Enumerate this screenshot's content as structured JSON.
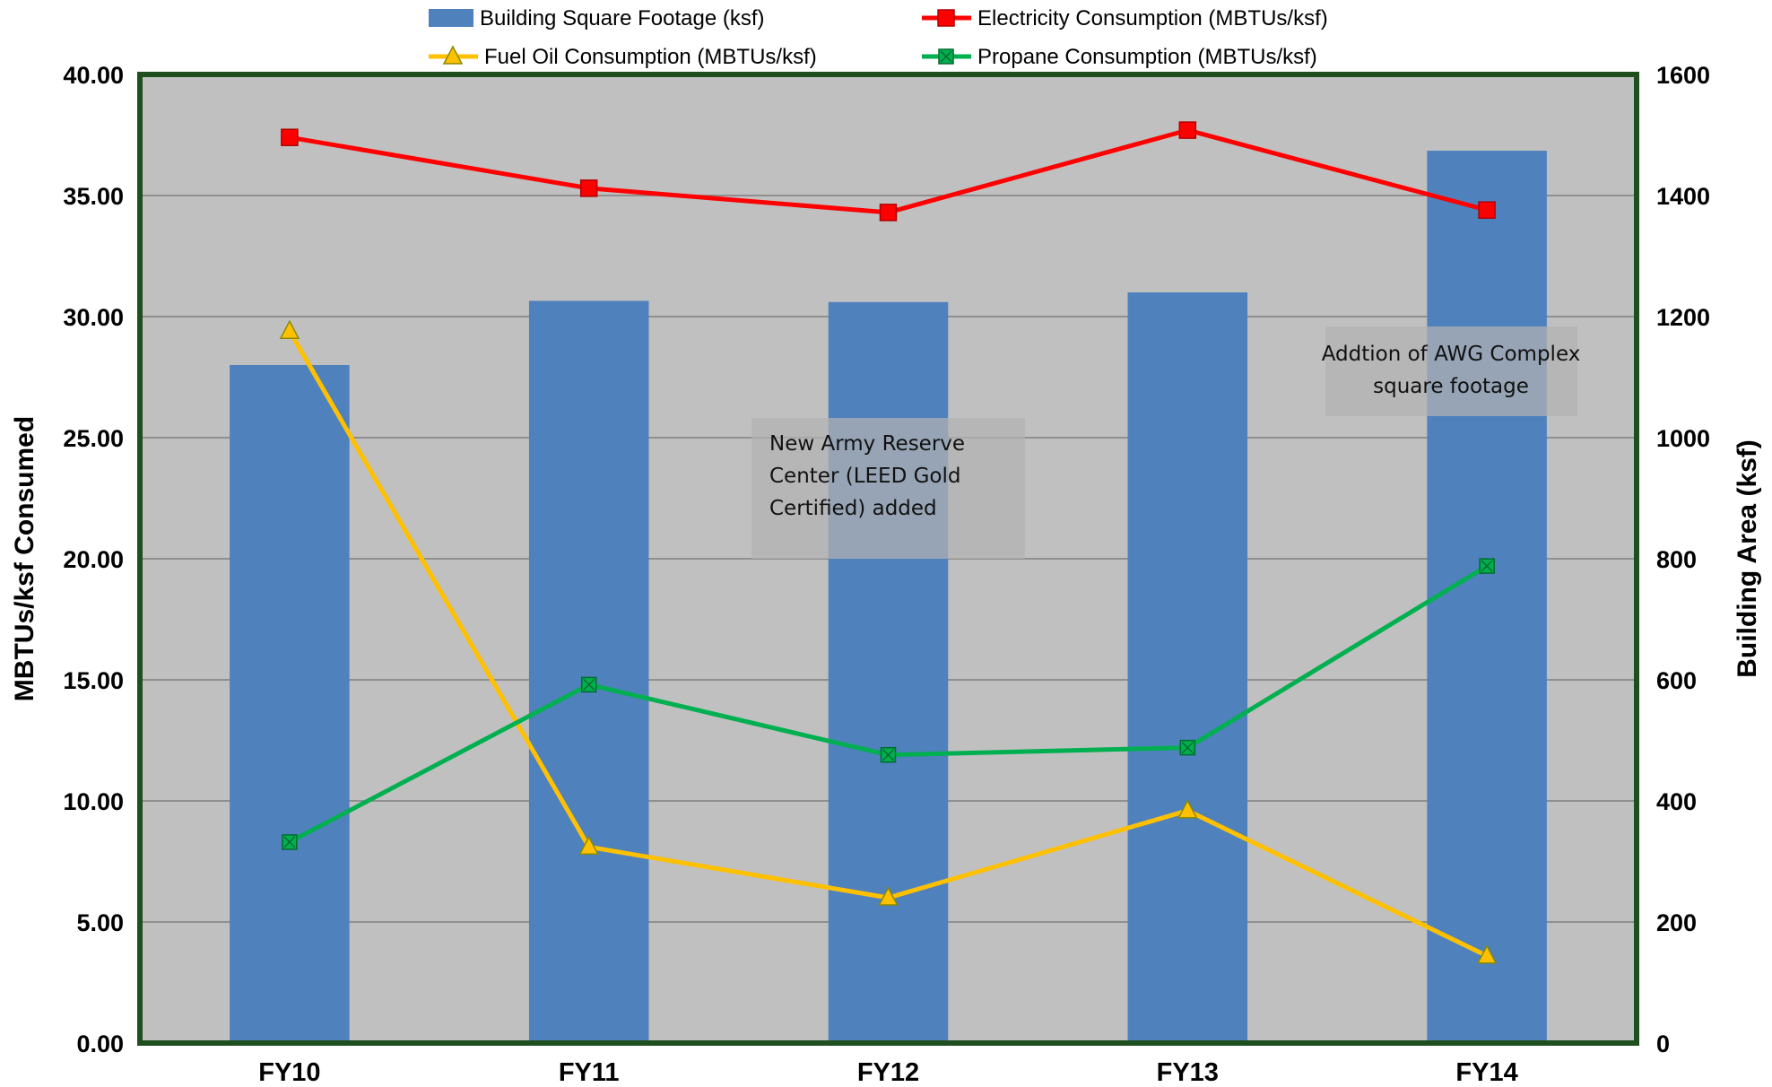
{
  "chart_data": {
    "type": "bar",
    "categories": [
      "FY10",
      "FY11",
      "FY12",
      "FY13",
      "FY14"
    ],
    "bar_series": {
      "name": "Building Square Footage (ksf)",
      "axis": "right",
      "color": "#4f81bd",
      "values": [
        1120,
        1226,
        1224,
        1240,
        1474
      ]
    },
    "line_series": [
      {
        "name": "Electricity Consumption (MBTUs/ksf)",
        "axis": "left",
        "color": "#ff0000",
        "marker": "square",
        "values": [
          37.4,
          35.3,
          34.3,
          37.7,
          34.4
        ]
      },
      {
        "name": "Fuel Oil Consumption (MBTUs/ksf)",
        "axis": "left",
        "color": "#ffc000",
        "marker": "triangle",
        "values": [
          29.4,
          8.1,
          6.0,
          9.6,
          3.6
        ]
      },
      {
        "name": "Propane Consumption (MBTUs/ksf)",
        "axis": "left",
        "color": "#00b050",
        "marker": "square-x",
        "values": [
          8.3,
          14.8,
          11.9,
          12.2,
          19.7
        ]
      }
    ],
    "ylabel": "MBTUs/ksf Consumed",
    "y2label": "Building Area (ksf)",
    "ylim": [
      0,
      40
    ],
    "y2lim": [
      0,
      1600
    ],
    "yticks": [
      "0.00",
      "5.00",
      "10.00",
      "15.00",
      "20.00",
      "25.00",
      "30.00",
      "35.00",
      "40.00"
    ],
    "y2ticks": [
      "0",
      "200",
      "400",
      "600",
      "800",
      "1000",
      "1200",
      "1400",
      "1600"
    ],
    "grid": true,
    "legend_position": "top",
    "plot_background": "#c0c0c0",
    "plot_border_color": "#1f4e1f",
    "annotations": [
      {
        "lines": [
          "New Army Reserve",
          "Center (LEED Gold",
          "Certified) added"
        ]
      },
      {
        "lines": [
          "Addtion of AWG Complex",
          "square footage"
        ]
      }
    ]
  }
}
